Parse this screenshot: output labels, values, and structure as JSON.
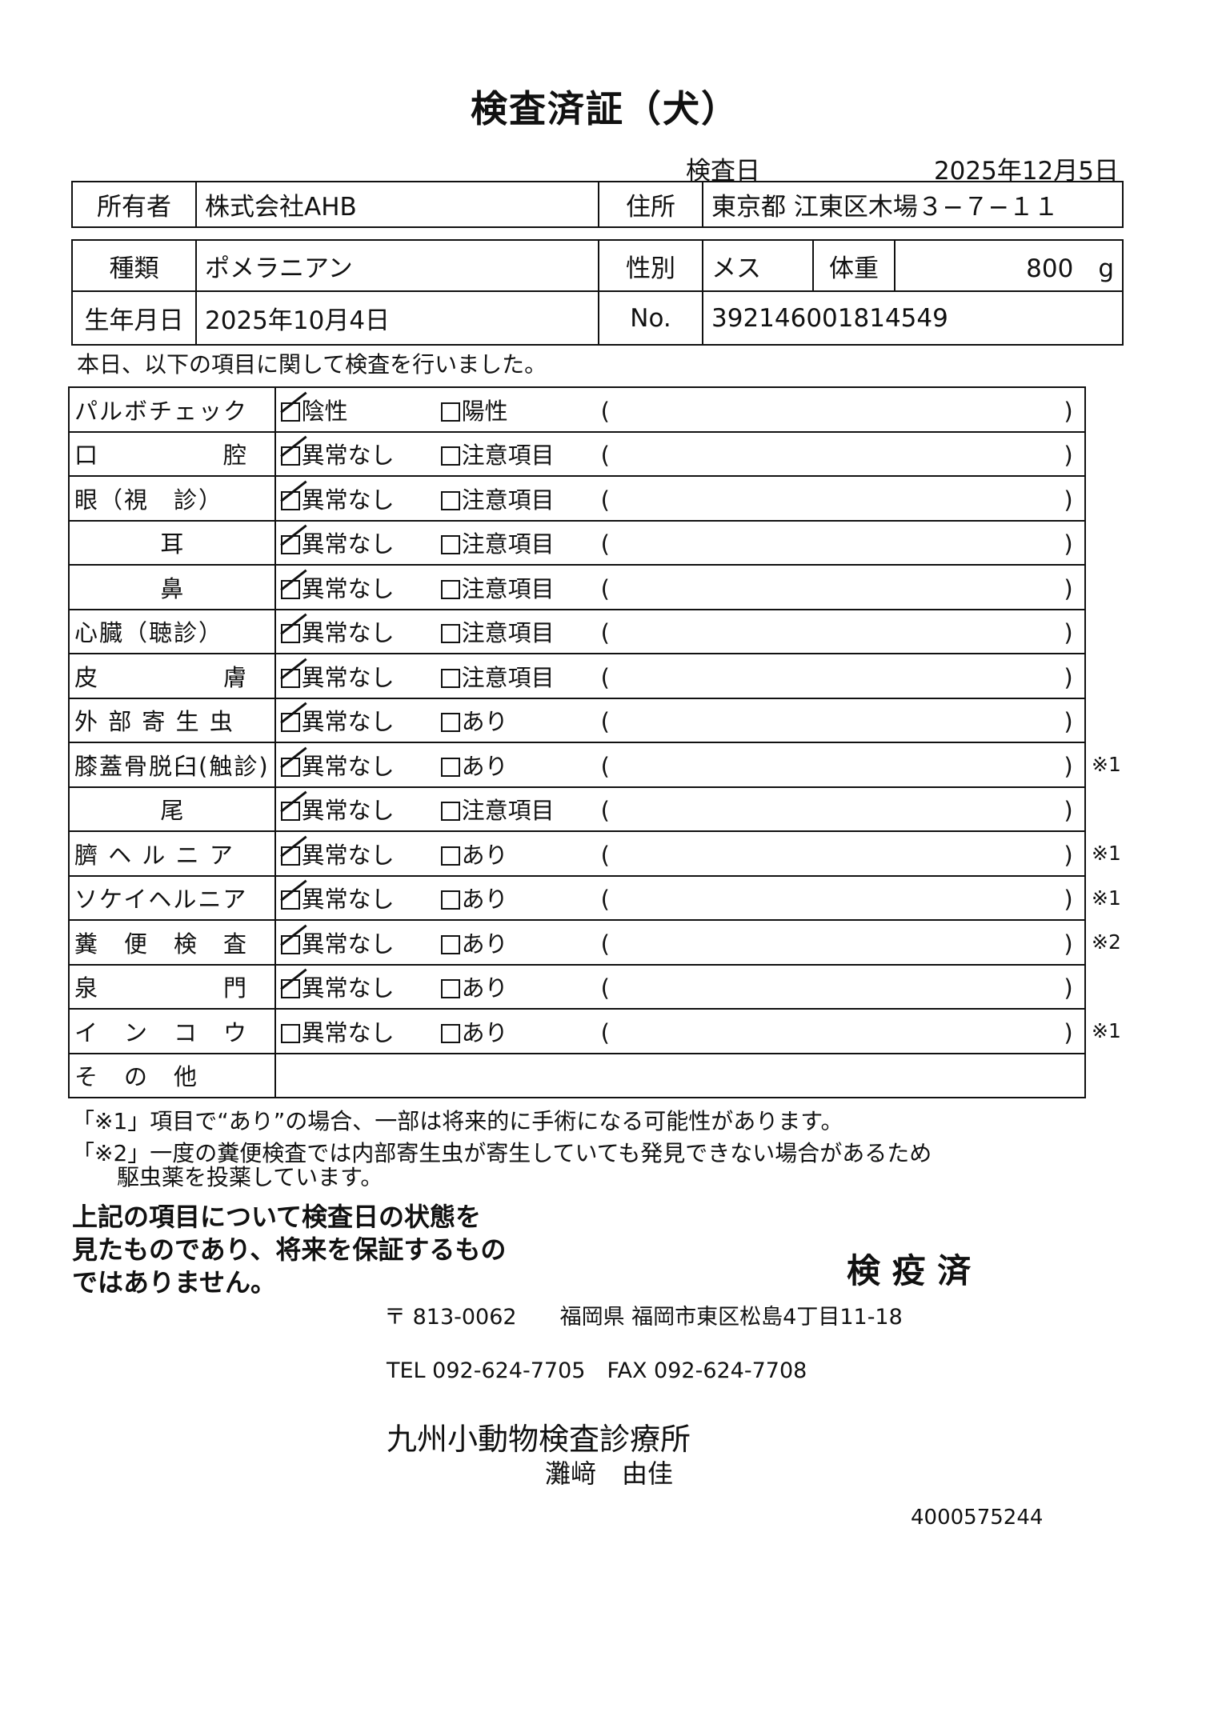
{
  "title": "検査済証（犬）",
  "exam_date_label": "検査日",
  "exam_date": "2025年12月5日",
  "owner": {
    "label": "所有者",
    "value": "株式会社AHB",
    "address_label": "住所",
    "address": "東京都 江東区木場３−７−１１"
  },
  "pet": {
    "type_label": "種類",
    "type": "ポメラニアン",
    "sex_label": "性別",
    "sex": "メス",
    "weight_label": "体重",
    "weight": "800",
    "weight_unit": "g",
    "birth_label": "生年月日",
    "birth": "2025年10月4日",
    "no_label": "No.",
    "no": "392146001814549"
  },
  "intro": "本日、以下の項目に関して検査を行いました。",
  "checks": [
    {
      "label": "パルボチェック",
      "opt1": "陰性",
      "opt2": "陽性",
      "checked": true,
      "mark": ""
    },
    {
      "label": "口　　　　　腔",
      "opt1": "異常なし",
      "opt2": "注意項目",
      "checked": true,
      "mark": ""
    },
    {
      "label": "眼（視　診）",
      "opt1": "異常なし",
      "opt2": "注意項目",
      "checked": true,
      "mark": ""
    },
    {
      "label": "耳",
      "opt1": "異常なし",
      "opt2": "注意項目",
      "checked": true,
      "mark": "",
      "center": true
    },
    {
      "label": "鼻",
      "opt1": "異常なし",
      "opt2": "注意項目",
      "checked": true,
      "mark": "",
      "center": true
    },
    {
      "label": "心臓（聴診）",
      "opt1": "異常なし",
      "opt2": "注意項目",
      "checked": true,
      "mark": ""
    },
    {
      "label": "皮　　　　　膚",
      "opt1": "異常なし",
      "opt2": "注意項目",
      "checked": true,
      "mark": ""
    },
    {
      "label": "外 部 寄 生 虫",
      "opt1": "異常なし",
      "opt2": "あり",
      "checked": true,
      "mark": ""
    },
    {
      "label": "膝蓋骨脱臼(触診)",
      "opt1": "異常なし",
      "opt2": "あり",
      "checked": true,
      "mark": "※1"
    },
    {
      "label": "尾",
      "opt1": "異常なし",
      "opt2": "注意項目",
      "checked": true,
      "mark": "",
      "center": true
    },
    {
      "label": "臍 ヘ ル ニ ア",
      "opt1": "異常なし",
      "opt2": "あり",
      "checked": true,
      "mark": "※1"
    },
    {
      "label": "ソケイヘルニア",
      "opt1": "異常なし",
      "opt2": "あり",
      "checked": true,
      "mark": "※1"
    },
    {
      "label": "糞　便　検　査",
      "opt1": "異常なし",
      "opt2": "あり",
      "checked": true,
      "mark": "※2"
    },
    {
      "label": "泉　　　　　門",
      "opt1": "異常なし",
      "opt2": "あり",
      "checked": true,
      "mark": ""
    },
    {
      "label": "イ　ン　コ　ウ",
      "opt1": "異常なし",
      "opt2": "あり",
      "checked": false,
      "mark": "※1"
    }
  ],
  "other_label": "そ　の　他",
  "notes": [
    "「※1」項目で“あり”の場合、一部は将来的に手術になる可能性があります。",
    "「※2」一度の糞便検査では内部寄生虫が寄生していても発見できない場合があるため",
    "　　駆虫薬を投薬しています。"
  ],
  "statement": [
    "上記の項目について検査日の状態を",
    "見たものであり、将来を保証するもの",
    "ではありません。"
  ],
  "stamp": "検 疫 済",
  "clinic": {
    "address": "〒 813-0062　　福岡県 福岡市東区松島4丁目11-18",
    "phone": "TEL 092-624-7705　FAX 092-624-7708",
    "name": "九州小動物検査診療所",
    "doctor": "灘﨑　由佳"
  },
  "doc_id": "4000575244"
}
